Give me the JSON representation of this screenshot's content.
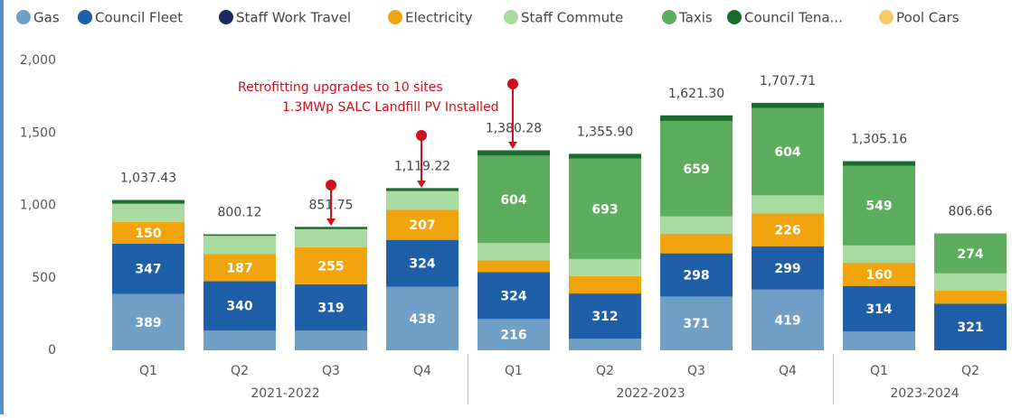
{
  "chart_data": {
    "type": "stacked_bar",
    "categories": [
      "Q1",
      "Q2",
      "Q3",
      "Q4",
      "Q1",
      "Q2",
      "Q3",
      "Q4",
      "Q1",
      "Q2"
    ],
    "years": [
      "2021-2022",
      "2021-2022",
      "2021-2022",
      "2021-2022",
      "2022-2023",
      "2022-2023",
      "2022-2023",
      "2022-2023",
      "2023-2024",
      "2023-2024"
    ],
    "ylim": [
      0,
      2000
    ],
    "yticks": [
      0,
      {
        "value": 500,
        "label": "500"
      },
      {
        "value": 1000,
        "label": "1,000"
      },
      {
        "value": 1500,
        "label": "1,500"
      },
      {
        "value": 2000,
        "label": "2,000"
      }
    ],
    "series": [
      {
        "name": "Gas",
        "color": "#6f9fc4",
        "values": [
          389,
          137,
          137,
          438,
          216,
          80,
          371,
          419,
          130,
          0
        ],
        "value_labels": [
          "389",
          null,
          null,
          "438",
          "216",
          null,
          "371",
          "419",
          null,
          null
        ]
      },
      {
        "name": "Council Fleet",
        "color": "#1f5fa8",
        "values": [
          347,
          340,
          319,
          324,
          324,
          312,
          298,
          299,
          314,
          321
        ],
        "value_labels": [
          "347",
          "340",
          "319",
          "324",
          "324",
          "312",
          "298",
          "299",
          "314",
          "321"
        ]
      },
      {
        "name": "Staff Work Travel",
        "color": "#1b2a5c",
        "values": [
          0,
          0,
          0,
          0,
          0,
          0,
          0,
          0,
          0,
          0
        ],
        "value_labels": [
          null,
          null,
          null,
          null,
          null,
          null,
          null,
          null,
          null,
          null
        ]
      },
      {
        "name": "Electricity",
        "color": "#f2a40e",
        "values": [
          150,
          187,
          255,
          207,
          80,
          120,
          135,
          226,
          160,
          90
        ],
        "value_labels": [
          "150",
          "187",
          "255",
          "207",
          null,
          null,
          null,
          "226",
          "160",
          null
        ]
      },
      {
        "name": "Staff Commute",
        "color": "#a8dba0",
        "values": [
          126,
          126,
          125,
          130,
          120,
          118,
          120,
          125,
          120,
          120
        ],
        "value_labels": [
          null,
          null,
          null,
          null,
          null,
          null,
          null,
          null,
          null,
          null
        ]
      },
      {
        "name": "Taxis",
        "color": "#5cad5c",
        "values": [
          0,
          0,
          0,
          0,
          604,
          693,
          659,
          604,
          549,
          274
        ],
        "value_labels": [
          null,
          null,
          null,
          null,
          "604",
          "693",
          "659",
          "604",
          "549",
          "274"
        ]
      },
      {
        "name": "Council Tena...",
        "color": "#1a6b30",
        "values": [
          25.43,
          10.12,
          15.75,
          20.22,
          36.28,
          32.9,
          38.3,
          34.71,
          32.16,
          1.66
        ],
        "value_labels": [
          null,
          null,
          null,
          null,
          null,
          null,
          null,
          null,
          null,
          null
        ]
      },
      {
        "name": "Pool Cars",
        "color": "#f7c96a",
        "values": [
          0,
          0,
          0,
          0,
          0,
          0,
          0,
          0,
          0,
          0
        ],
        "value_labels": [
          null,
          null,
          null,
          null,
          null,
          null,
          null,
          null,
          null,
          null
        ]
      }
    ],
    "totals": [
      1037.43,
      800.12,
      851.75,
      1119.22,
      1380.28,
      1355.9,
      1621.3,
      1707.71,
      1305.16,
      806.66
    ],
    "total_labels": [
      "1,037.43",
      "800.12",
      "851.75",
      "1,119.22",
      "1,380.28",
      "1,355.90",
      "1,621.30",
      "1,707.71",
      "1,305.16",
      "806.66"
    ],
    "annotations": [
      "Retrofitting upgrades to 10 sites",
      "1.3MWp SALC Landfill PV Installed"
    ]
  }
}
